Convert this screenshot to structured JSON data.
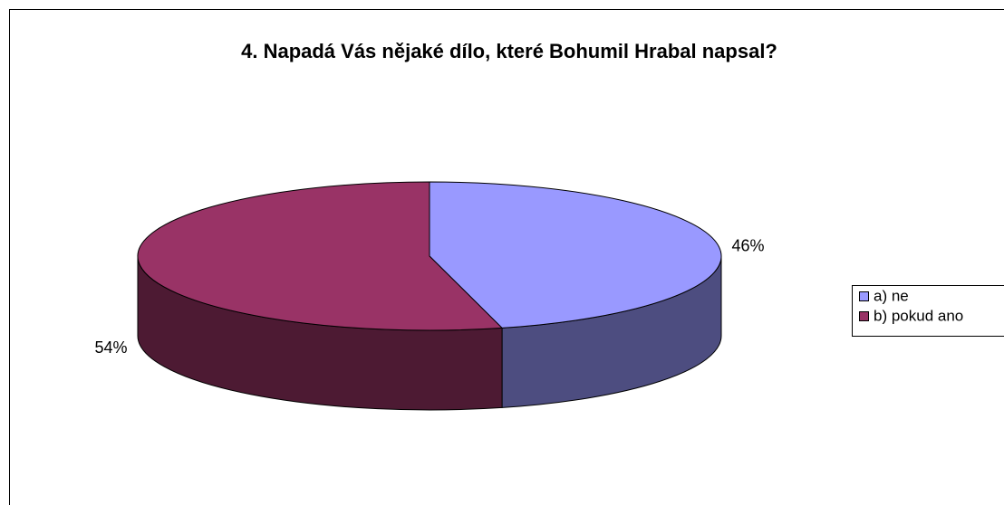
{
  "chart_data": {
    "type": "pie",
    "title": "4. Napadá Vás nějaké dílo, které Bohumil Hrabal napsal?",
    "categories": [
      "a) ne",
      "b) pokud ano"
    ],
    "values": [
      46,
      54
    ],
    "value_labels": [
      "46%",
      "54%"
    ],
    "colors": [
      "#9999ff",
      "#993366"
    ],
    "legend": "right"
  }
}
